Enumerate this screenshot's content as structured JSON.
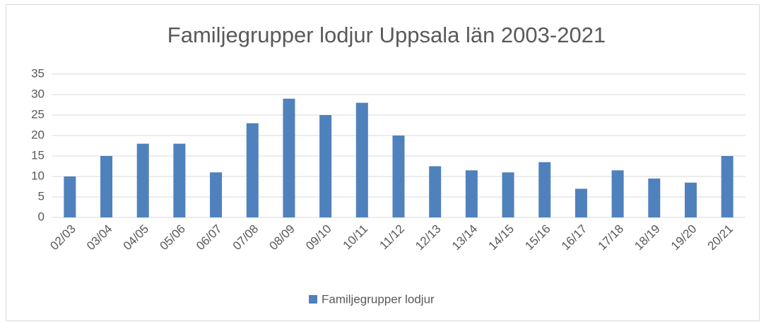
{
  "chart_data": {
    "type": "bar",
    "title": "Familjegrupper lodjur Uppsala län 2003-2021",
    "categories": [
      "02/03",
      "03/04",
      "04/05",
      "05/06",
      "06/07",
      "07/08",
      "08/09",
      "09/10",
      "10/11",
      "11/12",
      "12/13",
      "13/14",
      "14/15",
      "15/16",
      "16/17",
      "17/18",
      "18/19",
      "19/20",
      "20/21"
    ],
    "series": [
      {
        "name": "Familjegrupper lodjur",
        "color": "#4f81bd",
        "values": [
          10,
          15,
          18,
          18,
          11,
          23,
          29,
          25,
          28,
          20,
          12.5,
          11.5,
          11,
          13.5,
          7,
          11.5,
          9.5,
          8.5,
          15
        ]
      }
    ],
    "ylim": [
      0,
      35
    ],
    "yticks": [
      0,
      5,
      10,
      15,
      20,
      25,
      30,
      35
    ],
    "grid": true,
    "legend": "bottom"
  }
}
